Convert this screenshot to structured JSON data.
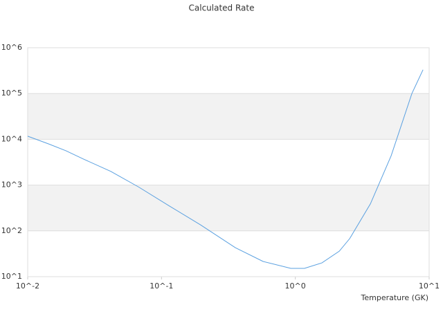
{
  "chart_data": {
    "type": "line",
    "title": "Calculated Rate",
    "x_label": "Temperature (GK)",
    "x": [
      0.01,
      0.0143,
      0.0193,
      0.026,
      0.0418,
      0.0673,
      0.115,
      0.196,
      0.356,
      0.574,
      0.925,
      1.17,
      1.58,
      2.13,
      2.55,
      3.64,
      5.2,
      7.43,
      9.0
    ],
    "values": [
      11700,
      7940,
      5620,
      3720,
      1990,
      912,
      347,
      135,
      43,
      21.5,
      15.2,
      15.2,
      20,
      36,
      68,
      390,
      4370,
      100000,
      331000
    ],
    "color": "#5aa0e0",
    "xscale": "log",
    "yscale": "log",
    "xlim": [
      0.01,
      10
    ],
    "ylim": [
      10,
      1000000
    ],
    "xticks": [
      {
        "value": 0.01,
        "label": "10^-2"
      },
      {
        "value": 0.1,
        "label": "10^-1"
      },
      {
        "value": 1,
        "label": "10^0"
      },
      {
        "value": 10,
        "label": "10^1"
      }
    ],
    "yticks": [
      {
        "value": 10,
        "label": "10^1"
      },
      {
        "value": 100,
        "label": "10^2"
      },
      {
        "value": 1000,
        "label": "10^3"
      },
      {
        "value": 10000,
        "label": "10^4"
      },
      {
        "value": 100000,
        "label": "10^5"
      },
      {
        "value": 1000000,
        "label": "10^6"
      }
    ],
    "grid": true,
    "band_color": "#f2f2f2"
  }
}
